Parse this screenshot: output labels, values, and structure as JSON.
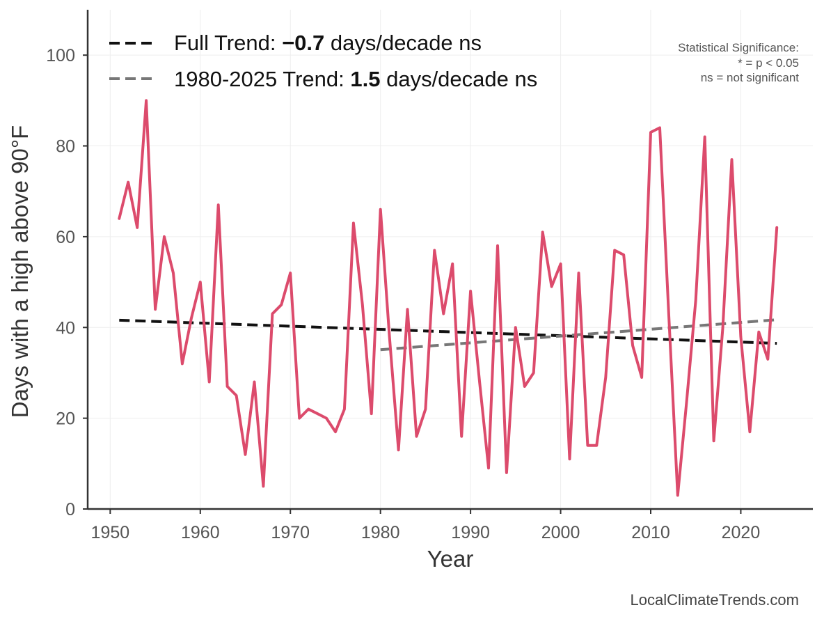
{
  "chart_data": {
    "type": "line",
    "xlabel": "Year",
    "ylabel": "Days with a high above 90°F",
    "xlim": [
      1947.5,
      2028
    ],
    "ylim": [
      0,
      110
    ],
    "x_ticks": [
      1950,
      1960,
      1970,
      1980,
      1990,
      2000,
      2010,
      2020
    ],
    "x_tick_labels": [
      "1950",
      "1960",
      "1970",
      "1980",
      "1990",
      "2000",
      "2010",
      "2020"
    ],
    "y_ticks": [
      0,
      20,
      40,
      60,
      80,
      100
    ],
    "y_tick_labels": [
      "0",
      "20",
      "40",
      "60",
      "80",
      "100"
    ],
    "grid": true,
    "series": [
      {
        "name": "Days with a high above 90°F",
        "color": "#dc4b6c",
        "x": [
          1951,
          1952,
          1953,
          1954,
          1955,
          1956,
          1957,
          1958,
          1959,
          1960,
          1961,
          1962,
          1963,
          1964,
          1965,
          1966,
          1967,
          1968,
          1969,
          1970,
          1971,
          1972,
          1973,
          1974,
          1975,
          1976,
          1977,
          1978,
          1979,
          1980,
          1981,
          1982,
          1983,
          1984,
          1985,
          1986,
          1987,
          1988,
          1989,
          1990,
          1991,
          1992,
          1993,
          1994,
          1995,
          1996,
          1997,
          1998,
          1999,
          2000,
          2001,
          2002,
          2003,
          2004,
          2005,
          2006,
          2007,
          2008,
          2009,
          2010,
          2011,
          2012,
          2013,
          2014,
          2015,
          2016,
          2017,
          2018,
          2019,
          2020,
          2021,
          2022,
          2023,
          2024
        ],
        "values": [
          64,
          72,
          62,
          90,
          44,
          60,
          52,
          32,
          42,
          50,
          28,
          67,
          27,
          25,
          12,
          28,
          5,
          43,
          45,
          52,
          20,
          22,
          21,
          20,
          17,
          22,
          63,
          45,
          21,
          66,
          38,
          13,
          44,
          16,
          22,
          57,
          43,
          54,
          16,
          48,
          28,
          9,
          58,
          8,
          40,
          27,
          30,
          61,
          49,
          54,
          11,
          52,
          14,
          14,
          29,
          57,
          56,
          36,
          29,
          83,
          84,
          43,
          3,
          24,
          46,
          82,
          15,
          40,
          77,
          38,
          17,
          39,
          33,
          62
        ]
      }
    ],
    "trend_lines": [
      {
        "name": "Full Trend",
        "label_prefix": "Full Trend: ",
        "value_label": "−0.7",
        "label_suffix": " days/decade ns",
        "slope_per_decade": -0.7,
        "x": [
          1951,
          2024
        ],
        "y": [
          41.6,
          36.5
        ],
        "color": "#111111",
        "style": "dashed"
      },
      {
        "name": "1980-2025 Trend",
        "label_prefix": "1980-2025 Trend: ",
        "value_label": "1.5",
        "label_suffix": " days/decade ns",
        "slope_per_decade": 1.5,
        "x": [
          1980,
          2024
        ],
        "y": [
          35.1,
          41.7
        ],
        "color": "#777777",
        "style": "dashed"
      }
    ],
    "legend_position": "top-left",
    "annotation": {
      "lines": [
        "Statistical Significance:",
        "* = p < 0.05",
        "ns = not significant"
      ],
      "position": "top-right"
    },
    "credit": "LocalClimateTrends.com"
  }
}
